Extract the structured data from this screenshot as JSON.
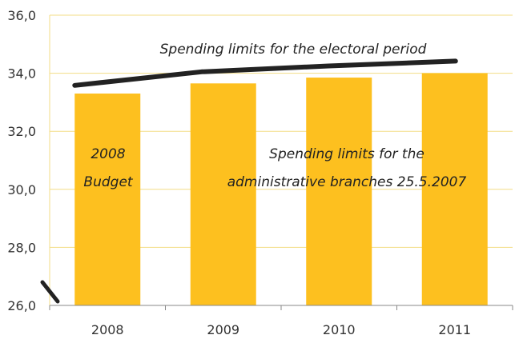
{
  "chart_data": {
    "type": "bar",
    "categories": [
      "2008",
      "2009",
      "2010",
      "2011"
    ],
    "values": [
      33.3,
      33.65,
      33.85,
      34.0
    ],
    "ylim": [
      26.0,
      36.0
    ],
    "y_ticks": [
      "26,0",
      "28,0",
      "30,0",
      "32,0",
      "34,0",
      "36,0"
    ],
    "grid": true,
    "series": [
      {
        "type": "bar",
        "values": [
          33.3,
          33.65,
          33.85,
          34.0
        ]
      },
      {
        "type": "line",
        "x_start": "2008",
        "x_end": "2011",
        "values": [
          33.58,
          34.05,
          34.25,
          34.42
        ]
      }
    ],
    "annotations": {
      "line_label": "Spending limits for the electoral period",
      "budget_label_line1": "2008",
      "budget_label_line2": "Budget",
      "admin_label_line1": "Spending limits for the",
      "admin_label_line2": "administrative branches 25.5.2007"
    }
  },
  "colors": {
    "bar": "#FDC01F",
    "grid": "#F3DD86",
    "line": "#222222",
    "axis": "#888888"
  }
}
